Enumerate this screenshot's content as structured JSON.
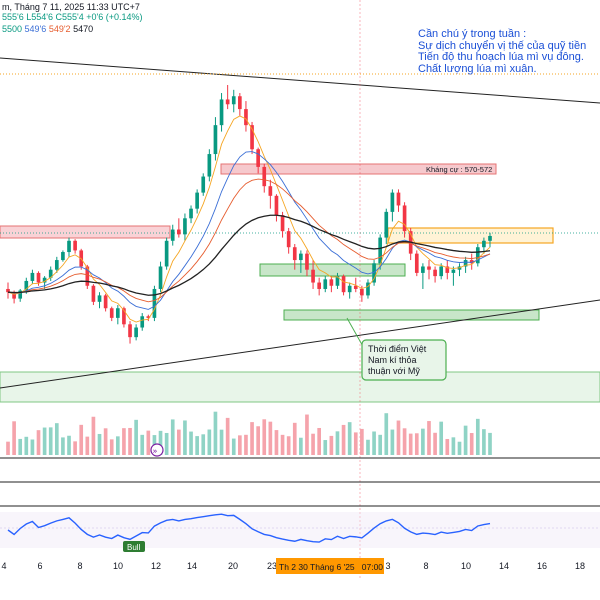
{
  "header": {
    "line1": "m, Tháng 7 11, 2025 11:33 UTC+7",
    "line2_values": [
      "555'6",
      "L554'6",
      "C555'4",
      "+0'6 (+0.14%)"
    ],
    "line3_values": [
      "5500",
      "549'6",
      "549'2",
      "5470"
    ]
  },
  "notes": {
    "title": "Cần chú ý trong tuần :",
    "items": [
      "Sự dịch chuyển vị thế của quỹ tiền",
      "Tiến độ thu hoạch lúa mì vụ đông.",
      "Chất lượng lúa mì xuân."
    ]
  },
  "annotations": {
    "resistance_label": "Kháng cự : 570-572",
    "callout": [
      "Thời điểm Việt",
      "Nam kí thỏa",
      "thuận với Mỹ"
    ],
    "bull_label": "Bull",
    "date_tag": "Th 2 30 Tháng 6 '25   07:00"
  },
  "colors": {
    "up": "#089981",
    "down": "#f23645",
    "ma_fast": "#f5a623",
    "ma_mid": "#3b6fd6",
    "ma_slow": "#e65c2e",
    "ma_long": "#222222",
    "rsi": "#2962ff",
    "note": "#1a4fd6",
    "date_tag": "#ff9800"
  },
  "chart_data": {
    "type": "candlestick",
    "x_tick_labels": [
      "4",
      "6",
      "8",
      "10",
      "12",
      "14",
      "16",
      "20",
      "23",
      "25",
      "3",
      "8",
      "10",
      "14",
      "16",
      "18"
    ],
    "candles": [
      [
        528,
        532,
        522,
        526
      ],
      [
        526,
        527,
        519,
        522
      ],
      [
        522,
        528,
        520,
        527
      ],
      [
        527,
        535,
        525,
        533
      ],
      [
        533,
        540,
        531,
        538
      ],
      [
        538,
        539,
        530,
        532
      ],
      [
        532,
        536,
        528,
        535
      ],
      [
        535,
        542,
        533,
        540
      ],
      [
        540,
        548,
        538,
        546
      ],
      [
        546,
        552,
        545,
        551
      ],
      [
        551,
        560,
        548,
        558
      ],
      [
        558,
        559,
        550,
        552
      ],
      [
        552,
        553,
        540,
        542
      ],
      [
        542,
        543,
        528,
        530
      ],
      [
        530,
        531,
        518,
        520
      ],
      [
        520,
        526,
        516,
        524
      ],
      [
        524,
        525,
        514,
        516
      ],
      [
        516,
        517,
        508,
        510
      ],
      [
        510,
        518,
        506,
        516
      ],
      [
        516,
        517,
        504,
        506
      ],
      [
        506,
        508,
        494,
        498
      ],
      [
        498,
        506,
        496,
        504
      ],
      [
        504,
        513,
        502,
        511
      ],
      [
        511,
        512,
        508,
        510
      ],
      [
        510,
        530,
        508,
        528
      ],
      [
        528,
        545,
        526,
        542
      ],
      [
        542,
        560,
        540,
        558
      ],
      [
        558,
        568,
        555,
        565
      ],
      [
        565,
        572,
        560,
        562
      ],
      [
        562,
        575,
        558,
        572
      ],
      [
        572,
        580,
        569,
        578
      ],
      [
        578,
        590,
        575,
        588
      ],
      [
        588,
        600,
        586,
        598
      ],
      [
        598,
        615,
        595,
        612
      ],
      [
        612,
        635,
        608,
        630
      ],
      [
        630,
        650,
        626,
        646
      ],
      [
        646,
        655,
        640,
        643
      ],
      [
        643,
        652,
        638,
        648
      ],
      [
        648,
        650,
        636,
        640
      ],
      [
        640,
        645,
        626,
        630
      ],
      [
        630,
        632,
        612,
        615
      ],
      [
        615,
        616,
        600,
        604
      ],
      [
        604,
        606,
        588,
        592
      ],
      [
        592,
        596,
        578,
        586
      ],
      [
        586,
        587,
        570,
        574
      ],
      [
        574,
        576,
        560,
        564
      ],
      [
        564,
        566,
        550,
        554
      ],
      [
        554,
        556,
        540,
        546
      ],
      [
        546,
        552,
        538,
        550
      ],
      [
        550,
        552,
        536,
        540
      ],
      [
        540,
        546,
        528,
        532
      ],
      [
        532,
        535,
        524,
        528
      ],
      [
        528,
        536,
        526,
        534
      ],
      [
        534,
        536,
        526,
        530
      ],
      [
        530,
        538,
        528,
        536
      ],
      [
        536,
        537,
        524,
        526
      ],
      [
        526,
        532,
        522,
        530
      ],
      [
        530,
        535,
        526,
        528
      ],
      [
        528,
        530,
        520,
        524
      ],
      [
        524,
        534,
        522,
        532
      ],
      [
        532,
        546,
        530,
        544
      ],
      [
        544,
        562,
        540,
        560
      ],
      [
        560,
        578,
        556,
        576
      ],
      [
        576,
        590,
        570,
        588
      ],
      [
        588,
        590,
        576,
        580
      ],
      [
        580,
        582,
        560,
        564
      ],
      [
        564,
        566,
        546,
        550
      ],
      [
        550,
        552,
        536,
        538
      ],
      [
        538,
        544,
        528,
        542
      ],
      [
        542,
        546,
        534,
        540
      ],
      [
        540,
        542,
        532,
        536
      ],
      [
        536,
        544,
        534,
        542
      ],
      [
        542,
        546,
        534,
        538
      ],
      [
        538,
        542,
        530,
        540
      ],
      [
        540,
        544,
        536,
        542
      ],
      [
        542,
        548,
        538,
        546
      ],
      [
        546,
        550,
        540,
        544
      ],
      [
        544,
        556,
        542,
        554
      ],
      [
        554,
        560,
        550,
        558
      ],
      [
        558,
        563,
        554,
        561
      ]
    ],
    "ma_fast_label": "5500",
    "ma_mid_label": "549'6",
    "ma_slow_label": "549'2",
    "ma_long_label": "5470",
    "grid": false,
    "legend": "none"
  }
}
